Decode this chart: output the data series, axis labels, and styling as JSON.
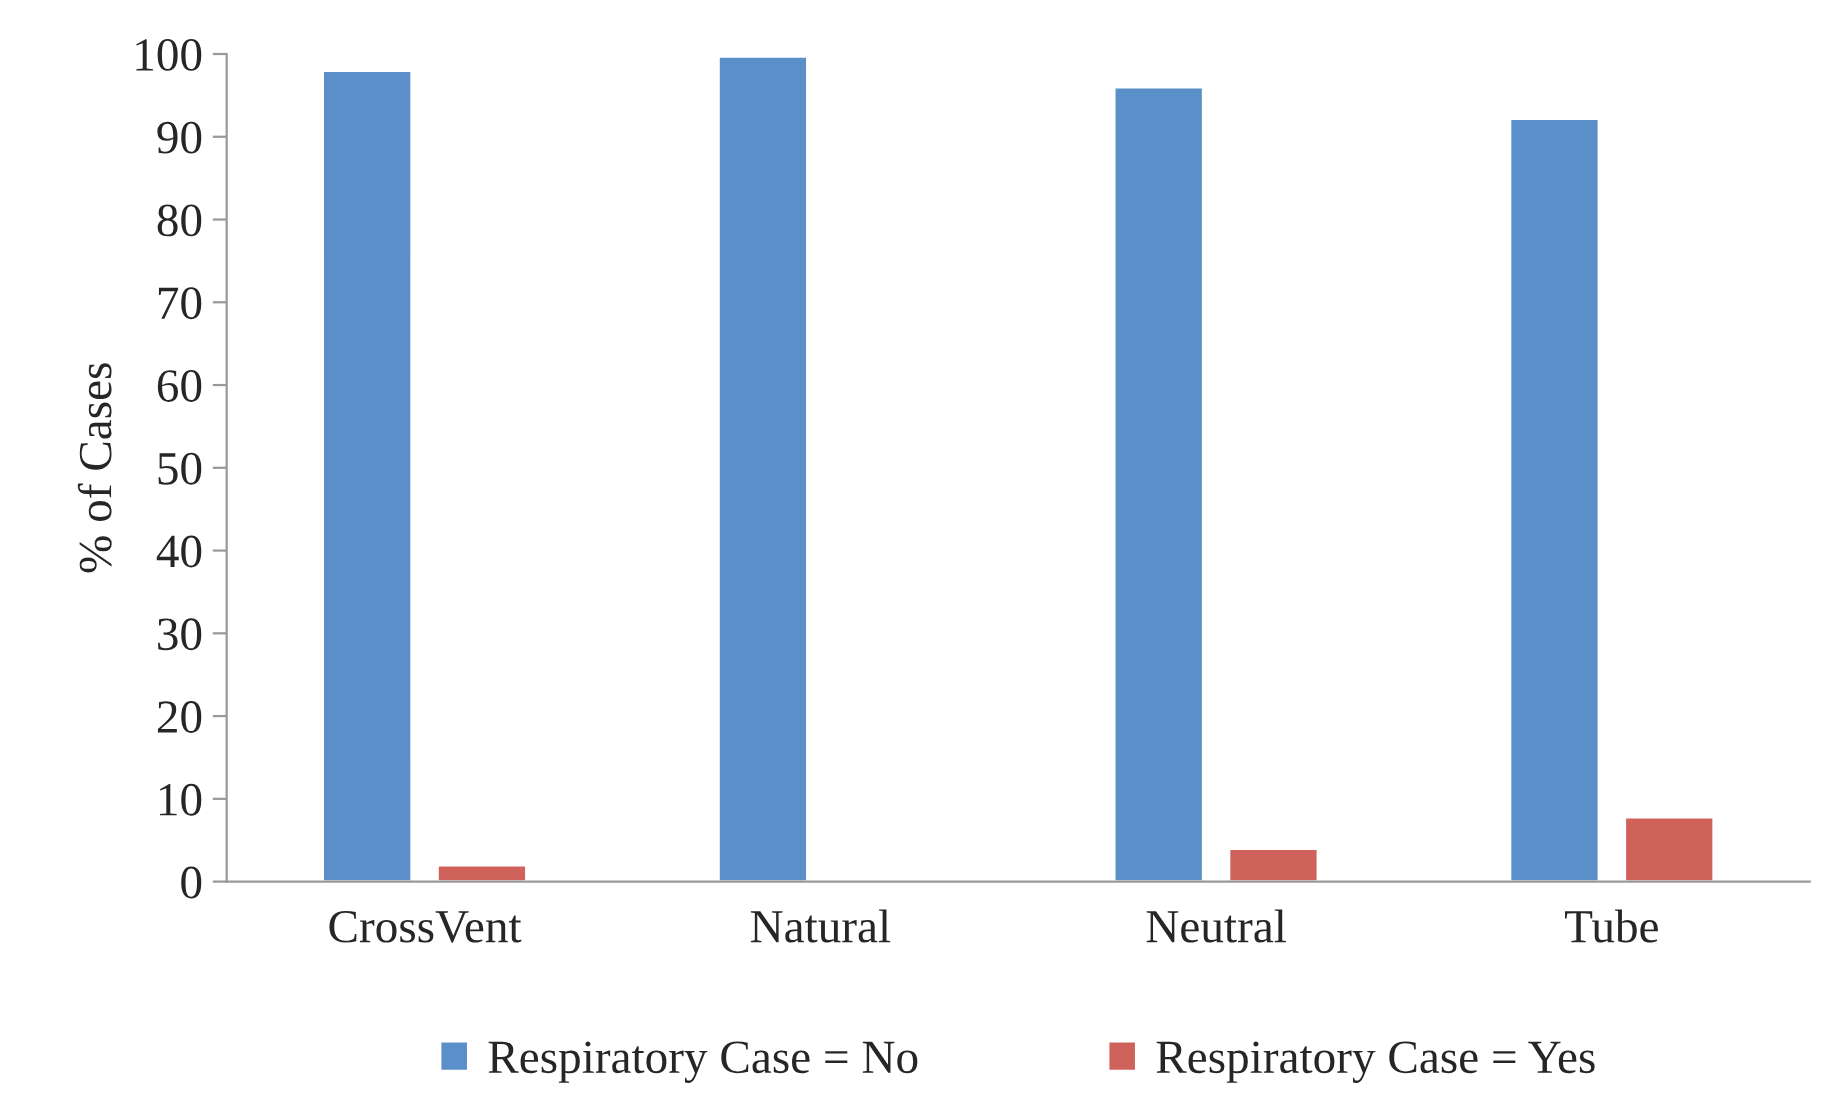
{
  "chart_data": {
    "type": "bar",
    "ylabel": "% of Cases",
    "categories": [
      "CrossVent",
      "Natural",
      "Neutral",
      "Tube"
    ],
    "series": [
      {
        "name": "Respiratory Case = No",
        "color": "#5b8fc9",
        "values": [
          98,
          99.7,
          96,
          92.2
        ]
      },
      {
        "name": "Respiratory Case = Yes",
        "color": "#d0625c",
        "values": [
          2,
          0.3,
          4,
          7.8
        ]
      }
    ],
    "ylim": [
      0,
      100
    ],
    "yticks": [
      0,
      10,
      20,
      30,
      40,
      50,
      60,
      70,
      80,
      90,
      100
    ],
    "grid": false,
    "legend": "bottom"
  }
}
